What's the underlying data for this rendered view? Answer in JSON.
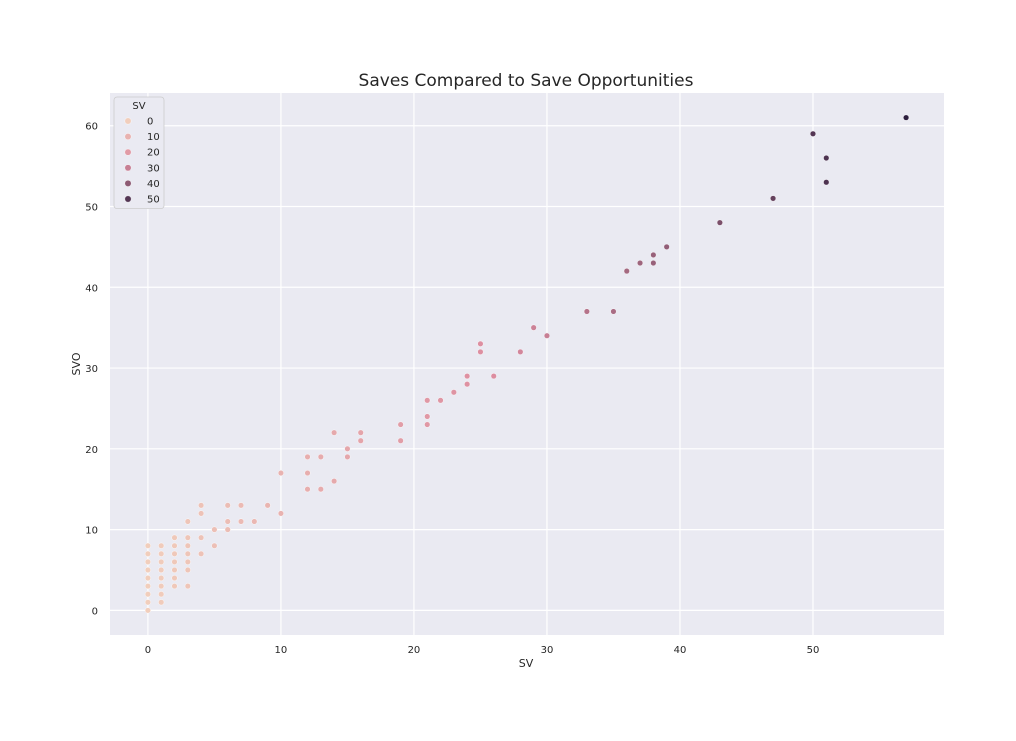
{
  "chart_data": {
    "type": "scatter",
    "title": "Saves Compared to Save Opportunities",
    "xlabel": "SV",
    "ylabel": "SVO",
    "xlim": [
      -2.85,
      59.85
    ],
    "ylim": [
      -3.05,
      64.05
    ],
    "xticks": [
      0,
      10,
      20,
      30,
      40,
      50
    ],
    "yticks": [
      0,
      10,
      20,
      30,
      40,
      50,
      60
    ],
    "grid": true,
    "legend": {
      "title": "SV",
      "placement": "top-left",
      "entries": [
        "0",
        "10",
        "20",
        "30",
        "40",
        "50"
      ],
      "entry_values": [
        0,
        10,
        20,
        30,
        40,
        50
      ]
    },
    "hue_variable": "SV",
    "color_low": "#f1cebc",
    "color_high": "#2d1e3e",
    "background_color": "#eaeaf2",
    "points": [
      [
        0,
        0
      ],
      [
        0,
        1
      ],
      [
        0,
        2
      ],
      [
        0,
        3
      ],
      [
        0,
        4
      ],
      [
        0,
        5
      ],
      [
        0,
        6
      ],
      [
        0,
        7
      ],
      [
        0,
        8
      ],
      [
        1,
        1
      ],
      [
        1,
        2
      ],
      [
        1,
        3
      ],
      [
        1,
        4
      ],
      [
        1,
        5
      ],
      [
        1,
        6
      ],
      [
        1,
        7
      ],
      [
        1,
        8
      ],
      [
        2,
        3
      ],
      [
        2,
        4
      ],
      [
        2,
        5
      ],
      [
        2,
        6
      ],
      [
        2,
        7
      ],
      [
        2,
        8
      ],
      [
        2,
        9
      ],
      [
        3,
        3
      ],
      [
        3,
        5
      ],
      [
        3,
        6
      ],
      [
        3,
        7
      ],
      [
        3,
        8
      ],
      [
        3,
        9
      ],
      [
        3,
        11
      ],
      [
        4,
        7
      ],
      [
        4,
        9
      ],
      [
        4,
        12
      ],
      [
        4,
        13
      ],
      [
        5,
        8
      ],
      [
        5,
        10
      ],
      [
        6,
        10
      ],
      [
        6,
        11
      ],
      [
        6,
        13
      ],
      [
        7,
        11
      ],
      [
        7,
        13
      ],
      [
        8,
        11
      ],
      [
        9,
        13
      ],
      [
        10,
        12
      ],
      [
        10,
        17
      ],
      [
        12,
        15
      ],
      [
        12,
        17
      ],
      [
        12,
        19
      ],
      [
        13,
        15
      ],
      [
        13,
        19
      ],
      [
        14,
        16
      ],
      [
        14,
        22
      ],
      [
        15,
        19
      ],
      [
        15,
        20
      ],
      [
        16,
        21
      ],
      [
        16,
        22
      ],
      [
        19,
        21
      ],
      [
        19,
        23
      ],
      [
        21,
        23
      ],
      [
        21,
        24
      ],
      [
        21,
        26
      ],
      [
        22,
        26
      ],
      [
        23,
        27
      ],
      [
        24,
        28
      ],
      [
        24,
        29
      ],
      [
        25,
        32
      ],
      [
        25,
        33
      ],
      [
        26,
        29
      ],
      [
        28,
        32
      ],
      [
        29,
        35
      ],
      [
        30,
        34
      ],
      [
        33,
        37
      ],
      [
        35,
        37
      ],
      [
        36,
        42
      ],
      [
        37,
        43
      ],
      [
        38,
        43
      ],
      [
        38,
        44
      ],
      [
        39,
        45
      ],
      [
        43,
        48
      ],
      [
        47,
        51
      ],
      [
        50,
        59
      ],
      [
        51,
        53
      ],
      [
        51,
        56
      ],
      [
        57,
        61
      ]
    ]
  }
}
